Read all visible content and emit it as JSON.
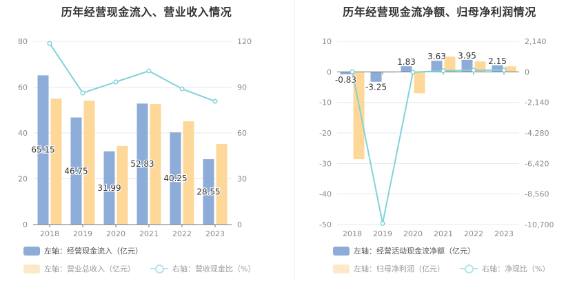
{
  "colors": {
    "blue": "#8eacd8",
    "orange": "#fed899",
    "line": "#7fd3d8",
    "grid": "#e3e8f0",
    "axis_text": "#8a8a8a",
    "title": "#333333"
  },
  "chart_data": [
    {
      "type": "bar+line",
      "title": "历年经营现金流入、营业收入情况",
      "categories": [
        "2018",
        "2019",
        "2020",
        "2021",
        "2022",
        "2023"
      ],
      "left_axis": {
        "ylim": [
          0,
          80
        ],
        "ticks": [
          "0",
          "20",
          "40",
          "60",
          "80"
        ]
      },
      "right_axis": {
        "ylim": [
          0,
          120
        ],
        "ticks": [
          "0",
          "30",
          "60",
          "90",
          "120"
        ]
      },
      "grid": true,
      "legend_position": "bottom-left",
      "series": [
        {
          "name": "左轴：经营现金流入（亿元）",
          "type": "bar",
          "axis": "left",
          "values": [
            65.15,
            46.75,
            31.99,
            52.83,
            40.25,
            28.55
          ],
          "labels": [
            "65.15",
            "46.75",
            "31.99",
            "52.83",
            "40.25",
            "28.55"
          ]
        },
        {
          "name": "左轴：营业总收入（亿元）",
          "type": "bar",
          "axis": "left",
          "values": [
            55.0,
            54.1,
            34.3,
            52.6,
            45.1,
            35.2
          ]
        },
        {
          "name": "右轴：营收现金比（%）",
          "type": "line",
          "axis": "right",
          "values": [
            118.6,
            86.2,
            93.4,
            100.6,
            88.9,
            80.7
          ]
        }
      ]
    },
    {
      "type": "bar+line",
      "title": "历年经营现金流净额、归母净利润情况",
      "categories": [
        "2018",
        "2019",
        "2020",
        "2021",
        "2022",
        "2023"
      ],
      "left_axis": {
        "ylim": [
          -50,
          10
        ],
        "ticks": [
          "-50",
          "-40",
          "-30",
          "-20",
          "-10",
          "0",
          "10"
        ]
      },
      "right_axis": {
        "ylim": [
          -10700,
          2140
        ],
        "ticks": [
          "-10,700",
          "-8,560",
          "-6,420",
          "-4,280",
          "-2,140",
          "0",
          "2,140"
        ]
      },
      "grid": true,
      "legend_position": "bottom-left",
      "series": [
        {
          "name": "左轴：经营活动现金流净额（亿元）",
          "type": "bar",
          "axis": "left",
          "values": [
            -0.83,
            -3.25,
            1.83,
            3.63,
            3.95,
            2.15
          ],
          "labels": [
            "-0.83",
            "-3.25",
            "1.83",
            "3.63",
            "3.95",
            "2.15"
          ]
        },
        {
          "name": "左轴：归母净利润（亿元）",
          "type": "bar",
          "axis": "left",
          "values": [
            -28.6,
            -0.1,
            -7.0,
            5.0,
            3.4,
            1.8
          ]
        },
        {
          "name": "右轴：净现比（%）",
          "type": "line",
          "axis": "right",
          "values": [
            2.9,
            -10620,
            -26.1,
            72.6,
            116.2,
            119.4
          ]
        }
      ]
    }
  ]
}
